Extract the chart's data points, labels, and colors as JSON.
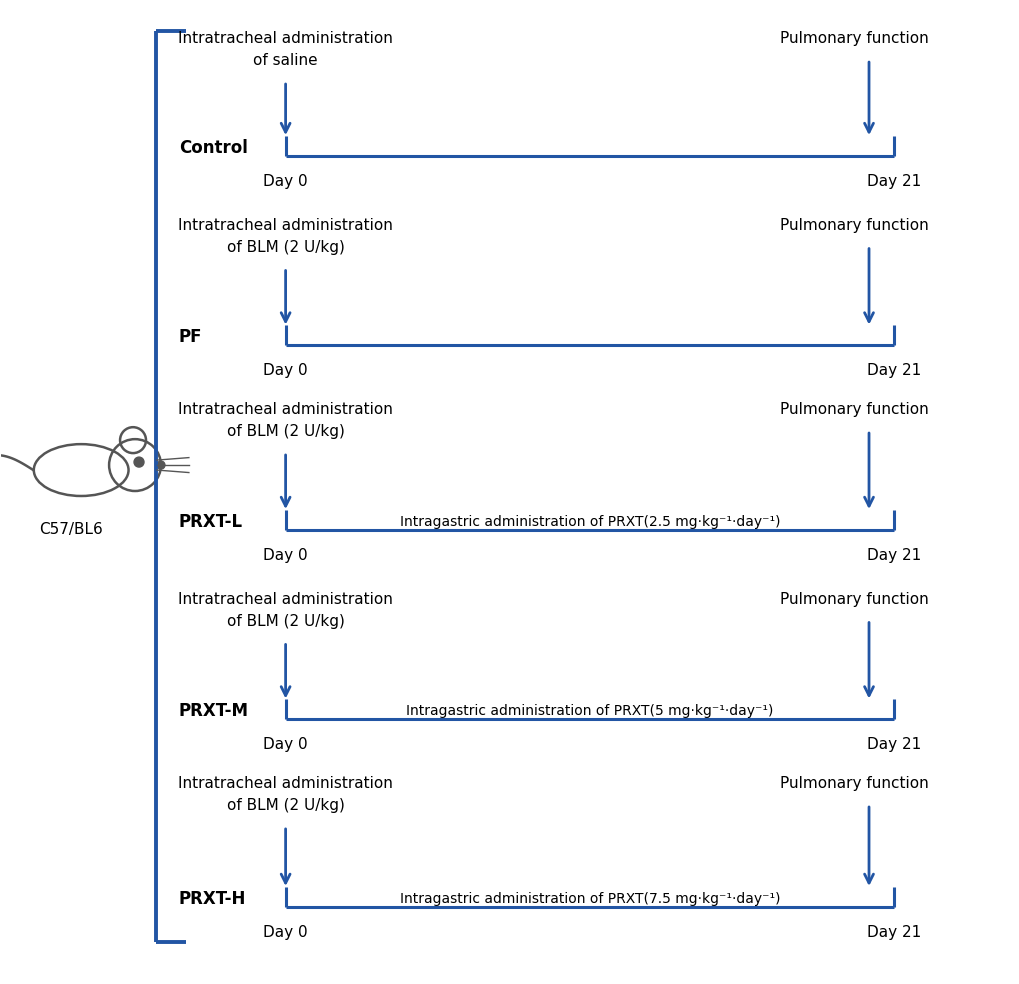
{
  "background_color": "#ffffff",
  "blue_color": "#2255a4",
  "text_color": "#000000",
  "groups": [
    {
      "label": "Control",
      "top_text_line1": "Intratracheal administration",
      "top_text_line2": "of saline",
      "has_intragastric": false,
      "intragastric_text": ""
    },
    {
      "label": "PF",
      "top_text_line1": "Intratracheal administration",
      "top_text_line2": "of BLM (2 U/kg)",
      "has_intragastric": false,
      "intragastric_text": ""
    },
    {
      "label": "PRXT-L",
      "top_text_line1": "Intratracheal administration",
      "top_text_line2": "of BLM (2 U/kg)",
      "has_intragastric": true,
      "intragastric_text": "Intragastric administration of PRXT(2.5 mg·kg⁻¹·day⁻¹)"
    },
    {
      "label": "PRXT-M",
      "top_text_line1": "Intratracheal administration",
      "top_text_line2": "of BLM (2 U/kg)",
      "has_intragastric": true,
      "intragastric_text": "Intragastric administration of PRXT(5 mg·kg⁻¹·day⁻¹)"
    },
    {
      "label": "PRXT-H",
      "top_text_line1": "Intratracheal administration",
      "top_text_line2": "of BLM (2 U/kg)",
      "has_intragastric": true,
      "intragastric_text": "Intragastric administration of PRXT(7.5 mg·kg⁻¹·day⁻¹)"
    }
  ],
  "pulmonary_function_text": "Pulmonary function",
  "day0_text": "Day 0",
  "day21_text": "Day 21",
  "mouse_label": "C57/BL6"
}
